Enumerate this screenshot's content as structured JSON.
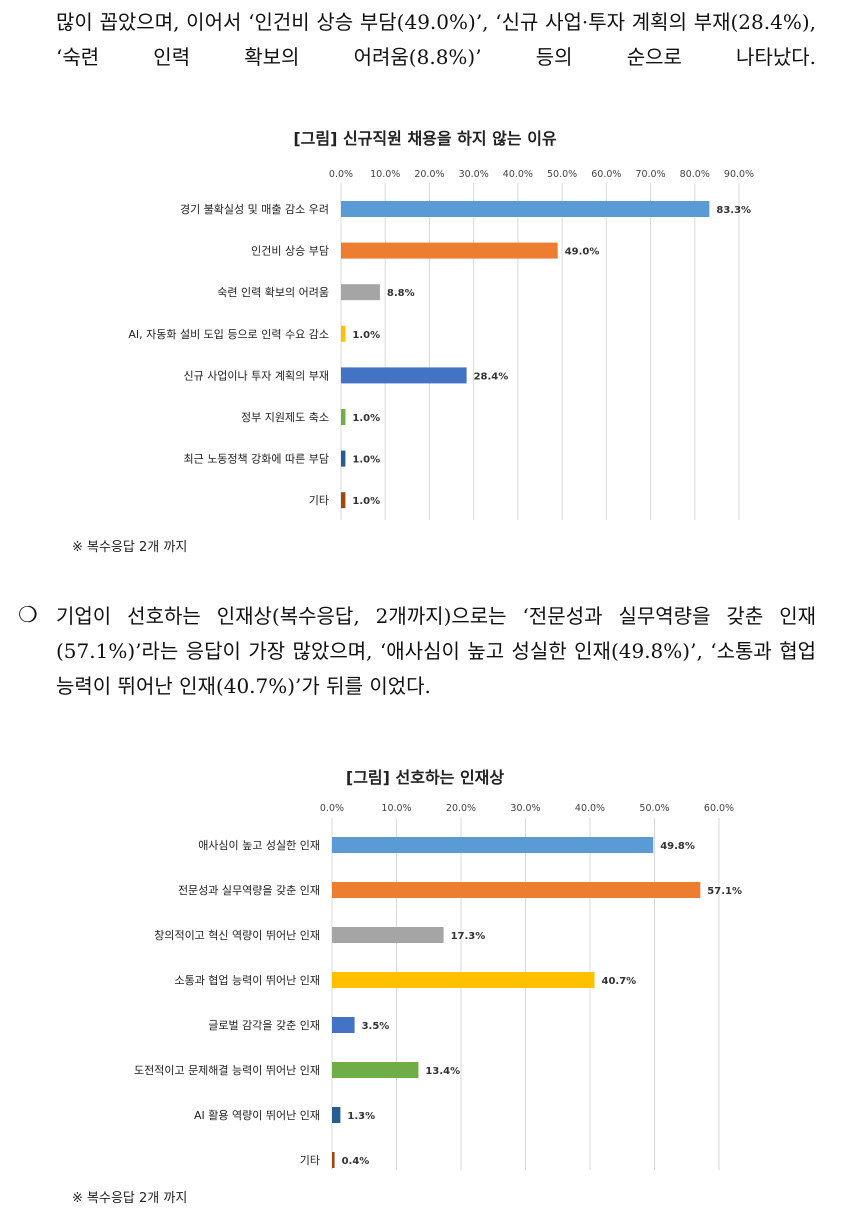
{
  "paragraph1": "많이 꼽았으며, 이어서 ‘인건비 상승 부담(49.0%)’, ‘신규 사업·투자 계획의 부재(28.4%), ‘숙련 인력 확보의 어려움(8.8%)’ 등의 순으로 나타났다.",
  "bullet_symbol": "❍",
  "paragraph2": "기업이 선호하는 인재상(복수응답, 2개까지)으로는 ‘전문성과 실무역량을 갖춘 인재(57.1%)’라는 응답이 가장 많았으며, ‘애사심이 높고 성실한 인재(49.8%)’, ‘소통과 협업 능력이 뛰어난 인재(40.7%)’가 뒤를 이었다.",
  "chart_data": [
    {
      "type": "bar",
      "orientation": "horizontal",
      "title": "[그림] 신규직원 채용을 하지 않는 이유",
      "note": "※ 복수응답 2개 까지",
      "xlim": [
        0,
        90
      ],
      "xticks": [
        "0.0%",
        "10.0%",
        "20.0%",
        "30.0%",
        "40.0%",
        "50.0%",
        "60.0%",
        "70.0%",
        "80.0%",
        "90.0%"
      ],
      "grid": "vertical",
      "categories": [
        "경기 불확실성 및 매출 감소 우려",
        "인건비 상승 부담",
        "숙련 인력 확보의 어려움",
        "AI, 자동화 설비 도입 등으로 인력 수요 감소",
        "신규 사업이나 투자 계획의 부재",
        "정부 지원제도 축소",
        "최근 노동정책 강화에 따른 부담",
        "기타"
      ],
      "values": [
        83.3,
        49.0,
        8.8,
        1.0,
        28.4,
        1.0,
        1.0,
        1.0
      ],
      "labels": [
        "83.3%",
        "49.0%",
        "8.8%",
        "1.0%",
        "28.4%",
        "1.0%",
        "1.0%",
        "1.0%"
      ],
      "colors": [
        "#5B9BD5",
        "#ED7D31",
        "#A5A5A5",
        "#FFC000",
        "#4472C4",
        "#70AD47",
        "#255E91",
        "#9E480E"
      ]
    },
    {
      "type": "bar",
      "orientation": "horizontal",
      "title": "[그림] 선호하는 인재상",
      "note": "※ 복수응답 2개 까지",
      "xlim": [
        0,
        60
      ],
      "xticks": [
        "0.0%",
        "10.0%",
        "20.0%",
        "30.0%",
        "40.0%",
        "50.0%",
        "60.0%"
      ],
      "grid": "vertical",
      "categories": [
        "애사심이 높고 성실한 인재",
        "전문성과 실무역량을 갖춘 인재",
        "창의적이고 혁신 역량이 뛰어난 인재",
        "소통과 협업 능력이 뛰어난 인재",
        "글로벌 감각을 갖춘 인재",
        "도전적이고 문제해결 능력이 뛰어난 인재",
        "AI 활용 역량이 뛰어난 인재",
        "기타"
      ],
      "values": [
        49.8,
        57.1,
        17.3,
        40.7,
        3.5,
        13.4,
        1.3,
        0.4
      ],
      "labels": [
        "49.8%",
        "57.1%",
        "17.3%",
        "40.7%",
        "3.5%",
        "13.4%",
        "1.3%",
        "0.4%"
      ],
      "colors": [
        "#5B9BD5",
        "#ED7D31",
        "#A5A5A5",
        "#FFC000",
        "#4472C4",
        "#70AD47",
        "#255E91",
        "#9E480E"
      ]
    }
  ]
}
